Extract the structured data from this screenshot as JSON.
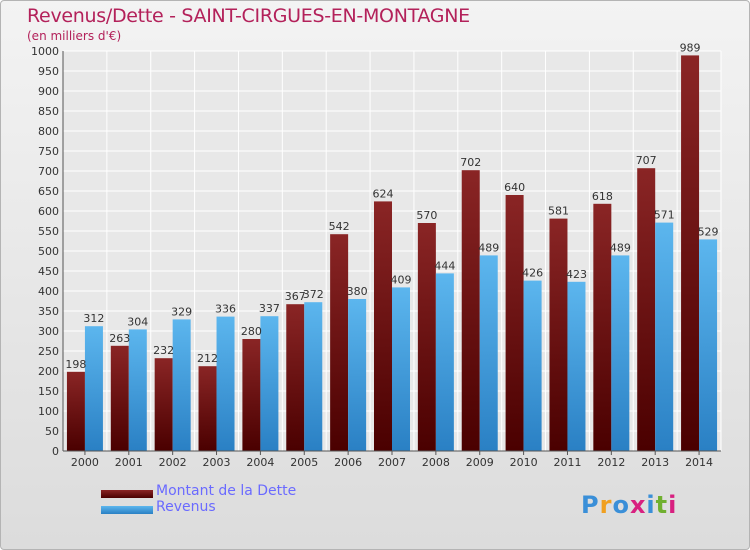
{
  "header": {
    "title": "Revenus/Dette - SAINT-CIRGUES-EN-MONTAGNE",
    "subtitle": "(en milliers d'€)"
  },
  "chart_data": {
    "type": "bar",
    "title": "Revenus/Dette - SAINT-CIRGUES-EN-MONTAGNE",
    "subtitle": "(en milliers d'€)",
    "categories": [
      "2000",
      "2001",
      "2002",
      "2003",
      "2004",
      "2005",
      "2006",
      "2007",
      "2008",
      "2009",
      "2010",
      "2011",
      "2012",
      "2013",
      "2014"
    ],
    "series": [
      {
        "name": "Montant de la Dette",
        "color": "#7a1414",
        "values": [
          198,
          263,
          232,
          212,
          280,
          367,
          542,
          624,
          570,
          702,
          640,
          581,
          618,
          707,
          989
        ]
      },
      {
        "name": "Revenus",
        "color": "#4aa5e0",
        "values": [
          312,
          304,
          329,
          336,
          337,
          372,
          380,
          409,
          444,
          489,
          426,
          423,
          489,
          571,
          529
        ]
      }
    ],
    "ylim": [
      0,
      1000
    ],
    "ytick_step": 50,
    "grid": true,
    "legend": "bottom-left"
  },
  "legend": {
    "items": [
      {
        "label": "Montant de la Dette",
        "color": "#6b0f0f"
      },
      {
        "label": "Revenus",
        "color": "#3a9ad9"
      }
    ]
  },
  "logo": {
    "letters": [
      "P",
      "r",
      "o",
      "x",
      "i",
      "t",
      "i"
    ],
    "colors": [
      "#3a8fd8",
      "#f0a020",
      "#3a8fd8",
      "#d82080",
      "#3a8fd8",
      "#70b030",
      "#d82080"
    ]
  }
}
